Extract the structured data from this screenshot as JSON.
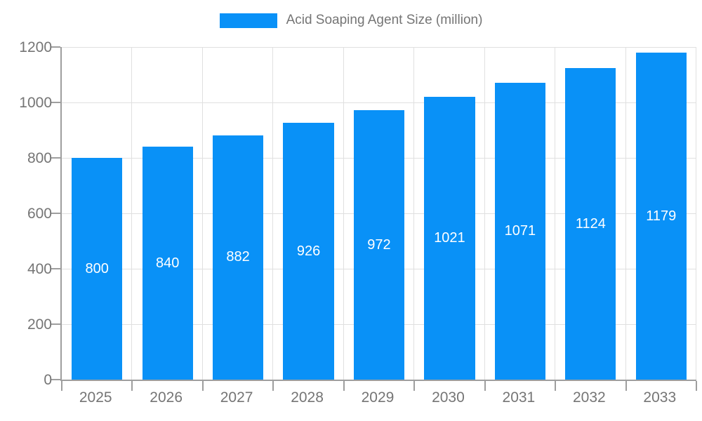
{
  "legend": {
    "label": "Acid Soaping Agent Size (million)"
  },
  "colors": {
    "bar": "#0991f7",
    "axis": "#9e9e9e",
    "gridline": "#e0e0e0",
    "tick_text": "#757575",
    "bar_label_text": "#ffffff",
    "background": "#ffffff"
  },
  "chart_data": {
    "type": "bar",
    "title": "Acid Soaping Agent Size (million)",
    "categories": [
      "2025",
      "2026",
      "2027",
      "2028",
      "2029",
      "2030",
      "2031",
      "2032",
      "2033"
    ],
    "values": [
      800,
      840,
      882,
      926,
      972,
      1021,
      1071,
      1124,
      1179
    ],
    "data_labels": [
      "800",
      "840",
      "882",
      "926",
      "972",
      "1021",
      "1071",
      "1124",
      "1179"
    ],
    "xlabel": "",
    "ylabel": "",
    "ylim": [
      0,
      1200
    ],
    "yticks": [
      0,
      200,
      400,
      600,
      800,
      1000,
      1200
    ],
    "grid": true,
    "legend_position": "top-center",
    "bar_color": "#0991f7",
    "value_label_position": "center-inside"
  }
}
